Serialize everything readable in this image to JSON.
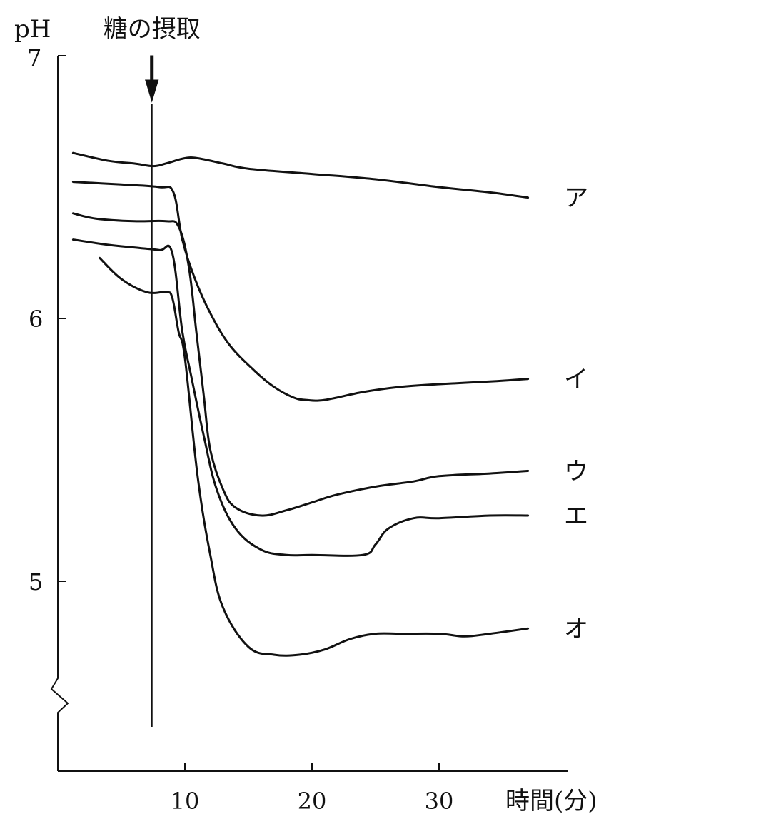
{
  "chart_data": {
    "type": "line",
    "title": "",
    "ylabel": "pH",
    "xlabel": "時間(分)",
    "xlim": [
      0,
      40
    ],
    "ylim": [
      4.6,
      7
    ],
    "y_axis_break": true,
    "x_ticks": [
      10,
      20,
      30
    ],
    "y_ticks": [
      5,
      6,
      7
    ],
    "grid": false,
    "event": {
      "label": "糖の摂取",
      "x": 7.4
    },
    "series": [
      {
        "name": "ア",
        "x": [
          1.2,
          4,
          6,
          7.5,
          8.5,
          10,
          11,
          13,
          15,
          20,
          25,
          30,
          34,
          37
        ],
        "y": [
          6.63,
          6.6,
          6.59,
          6.58,
          6.59,
          6.61,
          6.61,
          6.59,
          6.57,
          6.55,
          6.53,
          6.5,
          6.48,
          6.46
        ]
      },
      {
        "name": "イ",
        "x": [
          1.2,
          5,
          8,
          9.1,
          9.8,
          10.8,
          12,
          13.5,
          15.5,
          17,
          18.5,
          19.5,
          21,
          24,
          27,
          30,
          34,
          37
        ],
        "y": [
          6.52,
          6.51,
          6.5,
          6.48,
          6.3,
          6.15,
          6.02,
          5.9,
          5.8,
          5.74,
          5.7,
          5.69,
          5.69,
          5.72,
          5.74,
          5.75,
          5.76,
          5.77
        ]
      },
      {
        "name": "ウ",
        "x": [
          1.2,
          3,
          6,
          8.5,
          9.5,
          10.3,
          10.9,
          11.5,
          12,
          13,
          14,
          16,
          18,
          20,
          22,
          25,
          28,
          30,
          34,
          37
        ],
        "y": [
          6.4,
          6.38,
          6.37,
          6.37,
          6.35,
          6.2,
          5.95,
          5.7,
          5.5,
          5.35,
          5.28,
          5.25,
          5.27,
          5.3,
          5.33,
          5.36,
          5.38,
          5.4,
          5.41,
          5.42
        ]
      },
      {
        "name": "エ",
        "x": [
          1.2,
          4,
          6,
          8,
          9,
          9.8,
          10.5,
          11.5,
          12.5,
          14,
          16,
          18,
          20,
          24,
          25,
          26,
          28,
          30,
          34,
          37
        ],
        "y": [
          6.3,
          6.28,
          6.27,
          6.26,
          6.25,
          5.95,
          5.78,
          5.55,
          5.35,
          5.2,
          5.12,
          5.1,
          5.1,
          5.1,
          5.14,
          5.2,
          5.24,
          5.24,
          5.25,
          5.25
        ]
      },
      {
        "name": "オ",
        "x": [
          3.3,
          5,
          7,
          8.5,
          9,
          9.5,
          10,
          11,
          12,
          13,
          15,
          17,
          19,
          21,
          23,
          25,
          27,
          30,
          32,
          34,
          37
        ],
        "y": [
          6.23,
          6.15,
          6.1,
          6.1,
          6.08,
          5.95,
          5.85,
          5.4,
          5.1,
          4.9,
          4.75,
          4.72,
          4.72,
          4.74,
          4.78,
          4.8,
          4.8,
          4.8,
          4.79,
          4.8,
          4.82
        ]
      }
    ]
  }
}
